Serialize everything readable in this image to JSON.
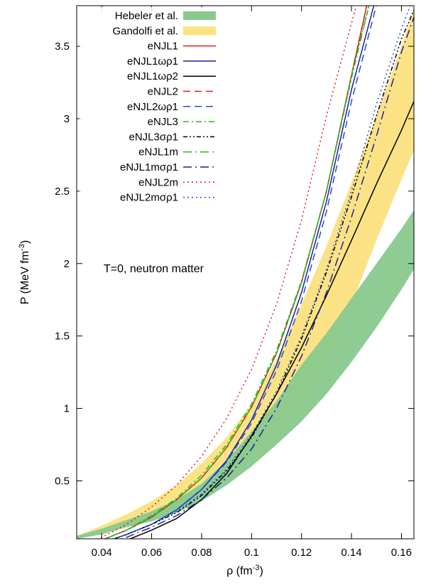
{
  "chart_data": {
    "type": "line",
    "xlabel": "ρ (fm",
    "xlabel_sup": "-3",
    "xlabel_end": ")",
    "ylabel": "P (MeV fm",
    "ylabel_sup": "-3",
    "ylabel_end": ")",
    "xlim": [
      0.03,
      0.165
    ],
    "ylim": [
      0.1,
      3.78
    ],
    "xticks": [
      0.04,
      0.06,
      0.08,
      0.1,
      0.12,
      0.14,
      0.16
    ],
    "xtick_labels": [
      "0.04",
      "0.06",
      "0.08",
      "0.1",
      "0.12",
      "0.14",
      "0.16"
    ],
    "yticks": [
      0.5,
      1,
      1.5,
      2,
      2.5,
      3,
      3.5
    ],
    "ytick_labels": [
      "0.5",
      "1",
      "1.5",
      "2",
      "2.5",
      "3",
      "3.5"
    ],
    "annotation": "T=0, neutron matter",
    "legend_position": "top-right",
    "bands": [
      {
        "name": "Hebeler et al.",
        "color": "#88c98d",
        "x": [
          0.03,
          0.04,
          0.05,
          0.06,
          0.07,
          0.08,
          0.09,
          0.1,
          0.11,
          0.12,
          0.13,
          0.14,
          0.15,
          0.16,
          0.165
        ],
        "upper": [
          0.12,
          0.17,
          0.23,
          0.29,
          0.37,
          0.48,
          0.64,
          0.84,
          1.05,
          1.3,
          1.52,
          1.76,
          2.0,
          2.24,
          2.37
        ],
        "lower": [
          0.1,
          0.13,
          0.18,
          0.22,
          0.28,
          0.36,
          0.47,
          0.6,
          0.75,
          0.91,
          1.1,
          1.32,
          1.56,
          1.82,
          1.96
        ]
      },
      {
        "name": "Gandolfi et al.",
        "color": "#fbe27e",
        "x": [
          0.03,
          0.04,
          0.05,
          0.06,
          0.07,
          0.08,
          0.09,
          0.1,
          0.11,
          0.12,
          0.13,
          0.14,
          0.15,
          0.16,
          0.165
        ],
        "upper": [
          0.12,
          0.19,
          0.27,
          0.36,
          0.47,
          0.62,
          0.8,
          1.03,
          1.34,
          1.72,
          2.12,
          2.56,
          3.02,
          3.5,
          3.76
        ],
        "lower": [
          0.1,
          0.14,
          0.19,
          0.24,
          0.31,
          0.39,
          0.5,
          0.64,
          0.8,
          1.02,
          1.32,
          1.72,
          2.16,
          2.58,
          2.78
        ]
      }
    ],
    "series": [
      {
        "name": "eNJL1",
        "color": "#e41a1c",
        "dash": "solid",
        "x": [
          0.03,
          0.04,
          0.05,
          0.06,
          0.07,
          0.08,
          0.09,
          0.1,
          0.11,
          0.12,
          0.13,
          0.14,
          0.147
        ],
        "y": [
          0.04,
          0.09,
          0.16,
          0.25,
          0.37,
          0.52,
          0.73,
          1.01,
          1.38,
          1.87,
          2.5,
          3.3,
          3.85
        ]
      },
      {
        "name": "eNJL1ωρ1",
        "color": "#1c1ca8",
        "dash": "solid",
        "x": [
          0.03,
          0.04,
          0.05,
          0.06,
          0.07,
          0.08,
          0.09,
          0.1,
          0.11,
          0.12,
          0.13,
          0.14,
          0.15
        ],
        "y": [
          0.03,
          0.07,
          0.13,
          0.2,
          0.3,
          0.44,
          0.64,
          0.92,
          1.3,
          1.8,
          2.43,
          3.2,
          3.85
        ]
      },
      {
        "name": "eNJL1ωρ2",
        "color": "#000000",
        "dash": "solid",
        "x": [
          0.03,
          0.04,
          0.05,
          0.06,
          0.07,
          0.08,
          0.09,
          0.1,
          0.11,
          0.12,
          0.13,
          0.14,
          0.15,
          0.16,
          0.165
        ],
        "y": [
          -0.05,
          0.02,
          0.09,
          0.16,
          0.24,
          0.37,
          0.55,
          0.81,
          1.1,
          1.42,
          1.78,
          2.16,
          2.55,
          2.92,
          3.12
        ]
      },
      {
        "name": "eNJL2",
        "color": "#e41a1c",
        "dash": "10,6",
        "x": [
          0.03,
          0.04,
          0.05,
          0.06,
          0.07,
          0.08,
          0.09,
          0.1,
          0.11,
          0.12,
          0.13,
          0.14,
          0.147
        ],
        "y": [
          0.04,
          0.09,
          0.16,
          0.25,
          0.37,
          0.52,
          0.73,
          1.01,
          1.38,
          1.87,
          2.5,
          3.3,
          3.85
        ]
      },
      {
        "name": "eNJL2ωρ1",
        "color": "#1f4be0",
        "dash": "10,6",
        "x": [
          0.03,
          0.04,
          0.05,
          0.06,
          0.07,
          0.08,
          0.09,
          0.1,
          0.11,
          0.12,
          0.13,
          0.14,
          0.151
        ],
        "y": [
          0.03,
          0.07,
          0.13,
          0.2,
          0.3,
          0.44,
          0.63,
          0.9,
          1.26,
          1.74,
          2.36,
          3.12,
          3.85
        ]
      },
      {
        "name": "eNJL3",
        "color": "#22bb22",
        "dash": "8,4,2,4",
        "x": [
          0.03,
          0.04,
          0.05,
          0.06,
          0.07,
          0.08,
          0.09,
          0.1,
          0.11,
          0.12,
          0.13,
          0.14,
          0.148
        ],
        "y": [
          0.04,
          0.09,
          0.16,
          0.26,
          0.38,
          0.54,
          0.75,
          1.03,
          1.4,
          1.88,
          2.5,
          3.28,
          3.85
        ]
      },
      {
        "name": "eNJL3σρ1",
        "color": "#000000",
        "dash": "6,3,2,3,2,3",
        "x": [
          0.03,
          0.04,
          0.05,
          0.06,
          0.07,
          0.08,
          0.09,
          0.1,
          0.11,
          0.12,
          0.13,
          0.14,
          0.15,
          0.16,
          0.165
        ],
        "y": [
          0.02,
          0.07,
          0.13,
          0.2,
          0.28,
          0.4,
          0.57,
          0.8,
          1.1,
          1.48,
          1.94,
          2.46,
          3.02,
          3.55,
          3.75
        ]
      },
      {
        "name": "eNJL1m",
        "color": "#22bb22",
        "dash": "12,5,2,5",
        "x": [
          0.03,
          0.04,
          0.05,
          0.06,
          0.07,
          0.08,
          0.09,
          0.1,
          0.11,
          0.12,
          0.13,
          0.14,
          0.148
        ],
        "y": [
          0.04,
          0.09,
          0.16,
          0.25,
          0.37,
          0.52,
          0.73,
          1.01,
          1.38,
          1.87,
          2.5,
          3.3,
          3.85
        ]
      },
      {
        "name": "eNJL1mσρ1",
        "color": "#1c1ca8",
        "dash": "12,5,2,5",
        "x": [
          0.03,
          0.04,
          0.05,
          0.06,
          0.07,
          0.08,
          0.09,
          0.1,
          0.11,
          0.12,
          0.13,
          0.14,
          0.15,
          0.16,
          0.165
        ],
        "y": [
          0.02,
          0.06,
          0.11,
          0.18,
          0.26,
          0.37,
          0.52,
          0.72,
          1.0,
          1.36,
          1.8,
          2.32,
          2.88,
          3.46,
          3.7
        ]
      },
      {
        "name": "eNJL2m",
        "color": "#e41a1c",
        "dash": "2,4",
        "x": [
          0.03,
          0.04,
          0.05,
          0.06,
          0.07,
          0.08,
          0.09,
          0.1,
          0.11,
          0.12,
          0.13,
          0.143
        ],
        "y": [
          0.05,
          0.11,
          0.2,
          0.32,
          0.47,
          0.67,
          0.93,
          1.27,
          1.72,
          2.3,
          3.02,
          3.85
        ]
      },
      {
        "name": "eNJL2mσρ1",
        "color": "#1f4be0",
        "dash": "2,4",
        "x": [
          0.03,
          0.04,
          0.05,
          0.06,
          0.07,
          0.08,
          0.09,
          0.1,
          0.11,
          0.12,
          0.13,
          0.14,
          0.15,
          0.16,
          0.165
        ],
        "y": [
          0.02,
          0.07,
          0.13,
          0.2,
          0.29,
          0.41,
          0.58,
          0.82,
          1.12,
          1.5,
          1.96,
          2.5,
          3.1,
          3.62,
          3.85
        ]
      }
    ]
  }
}
